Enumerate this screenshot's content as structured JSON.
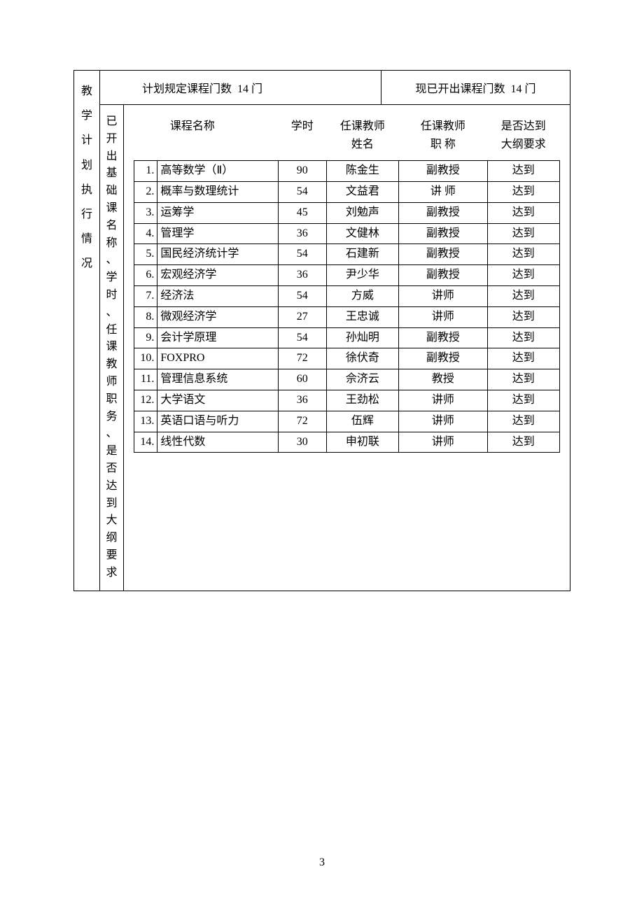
{
  "page_number": "3",
  "header": {
    "planned_label": "计划规定课程门数",
    "planned_value": "14 门",
    "opened_label": "现已开出课程门数",
    "opened_value": "14 门"
  },
  "vlabel_outer": "教学计划执行情况",
  "vlabel_inner": "已开出基础课名称、学时、任课教师职务、是否达到大纲要求",
  "columns": {
    "name": "课程名称",
    "hours": "学时",
    "teacher": "任课教师\n姓名",
    "title": "任课教师\n职 称",
    "ok": "是否达到\n大纲要求"
  },
  "courses": [
    {
      "idx": "1.",
      "name": "高等数学（Ⅱ）",
      "hours": "90",
      "teacher": "陈金生",
      "title": "副教授",
      "ok": "达到"
    },
    {
      "idx": "2.",
      "name": "概率与数理统计",
      "hours": "54",
      "teacher": "文益君",
      "title": "讲  师",
      "ok": "达到"
    },
    {
      "idx": "3.",
      "name": "运筹学",
      "hours": "45",
      "teacher": "刘勉声",
      "title": "副教授",
      "ok": "达到"
    },
    {
      "idx": "4.",
      "name": "管理学",
      "hours": "36",
      "teacher": "文健林",
      "title": "副教授",
      "ok": "达到"
    },
    {
      "idx": "5.",
      "name": "国民经济统计学",
      "hours": "54",
      "teacher": "石建新",
      "title": "副教授",
      "ok": "达到"
    },
    {
      "idx": "6.",
      "name": "宏观经济学",
      "hours": "36",
      "teacher": "尹少华",
      "title": "副教授",
      "ok": "达到"
    },
    {
      "idx": "7.",
      "name": "经济法",
      "hours": "54",
      "teacher": "方威",
      "title": "讲师",
      "ok": "达到"
    },
    {
      "idx": "8.",
      "name": "微观经济学",
      "hours": "27",
      "teacher": "王忠诚",
      "title": "讲师",
      "ok": "达到"
    },
    {
      "idx": "9.",
      "name": "会计学原理",
      "hours": "54",
      "teacher": "孙灿明",
      "title": "副教授",
      "ok": "达到"
    },
    {
      "idx": "10.",
      "name": "FOXPRO",
      "hours": "72",
      "teacher": "徐伏奇",
      "title": "副教授",
      "ok": "达到"
    },
    {
      "idx": "11.",
      "name": "管理信息系统",
      "hours": "60",
      "teacher": "佘济云",
      "title": "教授",
      "ok": "达到"
    },
    {
      "idx": "12.",
      "name": "大学语文",
      "hours": "36",
      "teacher": "王劲松",
      "title": "讲师",
      "ok": "达到"
    },
    {
      "idx": "13.",
      "name": "英语口语与听力",
      "hours": "72",
      "teacher": "伍辉",
      "title": "讲师",
      "ok": "达到"
    },
    {
      "idx": "14.",
      "name": "线性代数",
      "hours": "30",
      "teacher": "申初联",
      "title": "讲师",
      "ok": "达到"
    }
  ]
}
